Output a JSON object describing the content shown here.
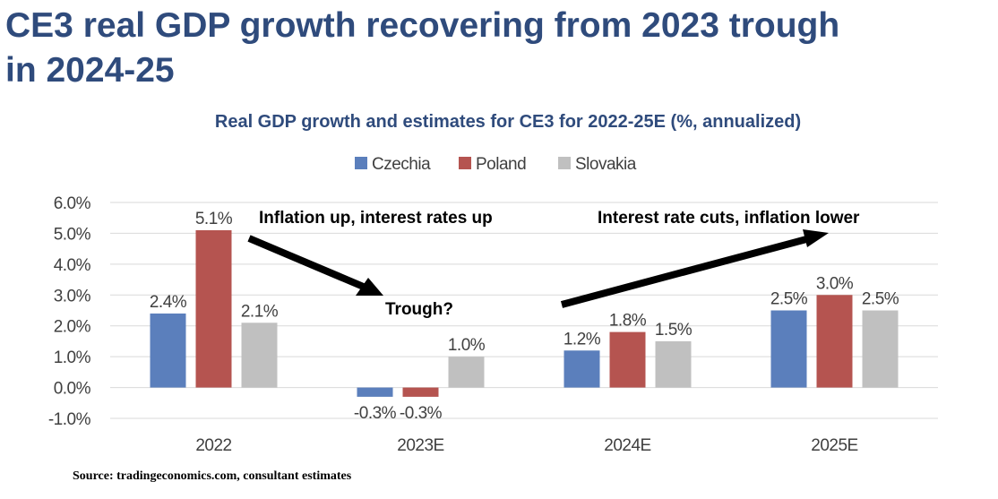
{
  "headline": {
    "line1": "CE3 real GDP growth recovering from 2023 trough",
    "line2": "in 2024-25"
  },
  "source": "Source: tradingeconomics.com, consultant estimates",
  "chart_data": {
    "type": "bar",
    "title": "Real GDP growth and estimates for CE3 for 2022-25E (%, annualized)",
    "categories": [
      "2022",
      "2023E",
      "2024E",
      "2025E"
    ],
    "series": [
      {
        "name": "Czechia",
        "color": "#5b7fbc",
        "values": [
          2.4,
          -0.3,
          1.2,
          2.5
        ],
        "labels": [
          "2.4%",
          "-0.3%",
          "1.2%",
          "2.5%"
        ]
      },
      {
        "name": "Poland",
        "color": "#b55450",
        "values": [
          5.1,
          -0.3,
          1.8,
          3.0
        ],
        "labels": [
          "5.1%",
          "-0.3%",
          "1.8%",
          "3.0%"
        ]
      },
      {
        "name": "Slovakia",
        "color": "#c0c0c0",
        "values": [
          2.1,
          1.0,
          1.5,
          2.5
        ],
        "labels": [
          "2.1%",
          "1.0%",
          "1.5%",
          "2.5%"
        ]
      }
    ],
    "ylim": [
      -1.0,
      6.0
    ],
    "yticks": [
      -1.0,
      0.0,
      1.0,
      2.0,
      3.0,
      4.0,
      5.0,
      6.0
    ],
    "ytick_labels": [
      "-1.0%",
      "0.0%",
      "1.0%",
      "2.0%",
      "3.0%",
      "4.0%",
      "5.0%",
      "6.0%"
    ],
    "grid": true,
    "legend_position": "top",
    "annotations": [
      "Inflation up, interest rates up",
      "Trough?",
      "Interest rate cuts, inflation lower"
    ]
  }
}
